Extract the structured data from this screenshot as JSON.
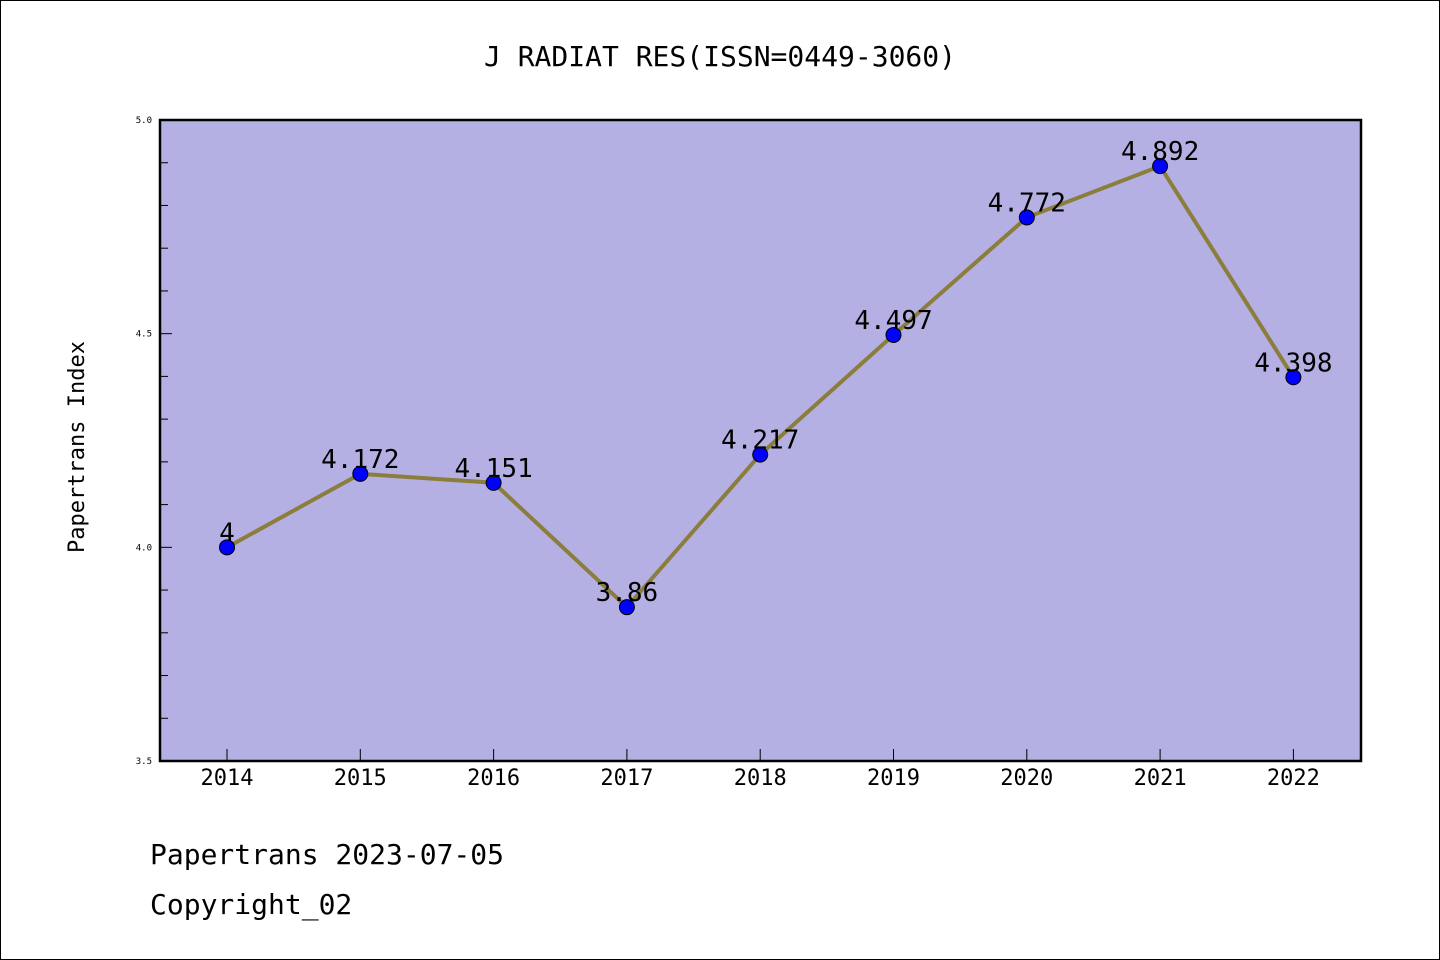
{
  "chart_data": {
    "type": "line",
    "title": "J RADIAT RES(ISSN=0449-3060)",
    "xlabel": "",
    "ylabel": "Papertrans Index",
    "categories": [
      "2014",
      "2015",
      "2016",
      "2017",
      "2018",
      "2019",
      "2020",
      "2021",
      "2022"
    ],
    "series": [
      {
        "values": [
          4,
          4.172,
          4.151,
          3.86,
          4.217,
          4.497,
          4.772,
          4.892,
          4.398
        ],
        "labels": [
          "4",
          "4.172",
          "4.151",
          "3.86",
          "4.217",
          "4.497",
          "4.772",
          "4.892",
          "4.398"
        ]
      }
    ],
    "ylim": [
      3.5,
      5.0
    ],
    "yticks": [
      "3.5",
      "4.0",
      "4.5",
      "5.0"
    ],
    "grid": false,
    "colors": {
      "plot_background": "#b5b0e3",
      "line": "#8b7d3c",
      "marker": "#0000ff"
    }
  },
  "footer": {
    "line1": "Papertrans 2023-07-05",
    "line2": "Copyright_02"
  }
}
